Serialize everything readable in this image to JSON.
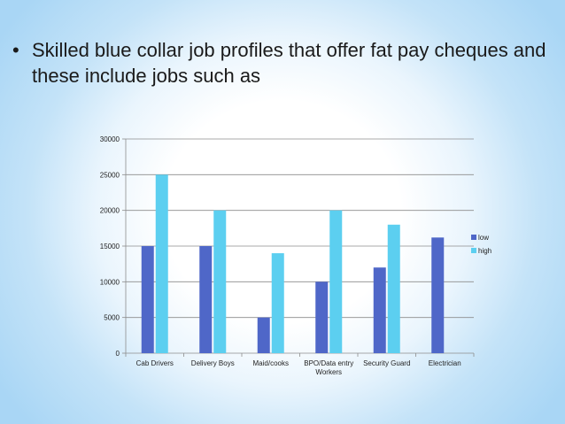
{
  "slide": {
    "bullet_symbol": "•",
    "bullet_text": "Skilled blue collar job profiles that offer fat pay cheques and these include jobs such as"
  },
  "chart_data": {
    "type": "bar",
    "categories": [
      "Cab Drivers",
      "Delivery Boys",
      "Maid/cooks",
      "BPO/Data entry Workers",
      "Security Guard",
      "Electrician"
    ],
    "category_lines": [
      [
        "Cab Drivers"
      ],
      [
        "Delivery Boys"
      ],
      [
        "Maid/cooks"
      ],
      [
        "BPO/Data entry",
        "Workers"
      ],
      [
        "Security Guard"
      ],
      [
        "Electrician"
      ]
    ],
    "series": [
      {
        "name": "low",
        "values": [
          15000,
          15000,
          5000,
          10000,
          12000,
          16200
        ],
        "color": "#4f67c8"
      },
      {
        "name": "high",
        "values": [
          25000,
          20000,
          14000,
          20000,
          18000,
          null
        ],
        "color": "#5ccff0"
      }
    ],
    "yticks": [
      0,
      5000,
      10000,
      15000,
      20000,
      25000,
      30000
    ],
    "ylim": [
      0,
      30000
    ],
    "grid": true,
    "legend": "right",
    "title": "",
    "xlabel": "",
    "ylabel": ""
  }
}
